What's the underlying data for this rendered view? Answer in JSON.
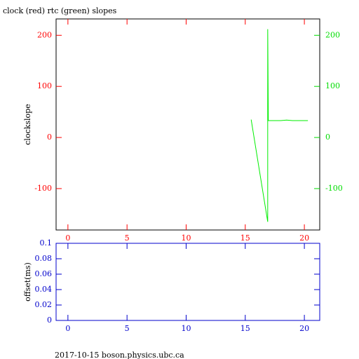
{
  "chart_data": [
    {
      "type": "line",
      "title": "clock (red) rtc (green) slopes",
      "y_label": "clockslope",
      "xlim": [
        -1,
        21.3
      ],
      "xticks": [
        0,
        5,
        10,
        15,
        20
      ],
      "ylim": [
        -181,
        232
      ],
      "yticks": [
        -100,
        0,
        100,
        200
      ],
      "y2lim": [
        -181,
        232
      ],
      "y2ticks": [
        -100,
        0,
        100,
        200
      ],
      "axis_color": "#ff0000",
      "y2_color": "#00dd00",
      "frame_color": "#000000",
      "series": [
        {
          "color": "#00ee00",
          "axis": "y",
          "x": [
            15.5,
            16.9,
            16.9,
            16.95,
            17.5,
            18,
            18.5,
            19,
            19.5,
            20.3
          ],
          "values": [
            35,
            -165,
            212,
            33,
            33,
            33,
            34,
            33,
            33,
            33
          ]
        }
      ]
    },
    {
      "type": "line",
      "y_label": "offset(ms)",
      "xlim": [
        -1,
        21.3
      ],
      "xticks": [
        0,
        5,
        10,
        15,
        20
      ],
      "ylim": [
        0,
        0.1
      ],
      "yticks": [
        0,
        0.02,
        0.04,
        0.06,
        0.08,
        0.1
      ],
      "axis_color": "#0000cc",
      "frame_color": "#0000cc",
      "series": []
    }
  ],
  "footer": "2017-10-15 boson.physics.ubc.ca"
}
